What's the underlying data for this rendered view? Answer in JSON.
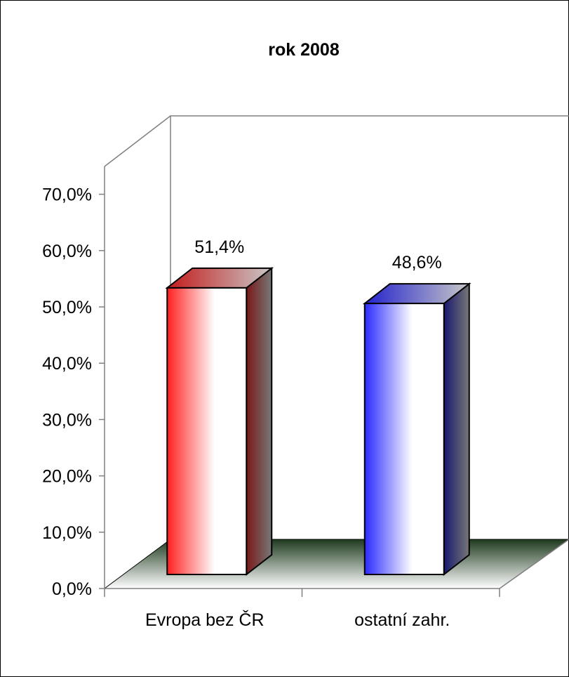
{
  "chart_data": {
    "type": "bar",
    "title": "rok 2008",
    "categories": [
      "Evropa bez ČR",
      "ostatní zahr."
    ],
    "values": [
      51.4,
      48.6
    ],
    "data_labels": [
      "51,4%",
      "48,6%"
    ],
    "yticks": [
      "0,0%",
      "10,0%",
      "20,0%",
      "30,0%",
      "40,0%",
      "50,0%",
      "60,0%",
      "70,0%"
    ],
    "ylim": [
      0,
      70
    ],
    "xlabel": "",
    "ylabel": "",
    "style": "3d",
    "legend": "none",
    "grid": false,
    "colors": {
      "bar_front": [
        "#ff2020",
        "#2a2aff"
      ],
      "bar_side": [
        "#6a1a1a",
        "#1a1a6a"
      ],
      "floor_back": "#1e3a1e",
      "floor_front": "#ffffff",
      "axis": "#808080"
    }
  }
}
